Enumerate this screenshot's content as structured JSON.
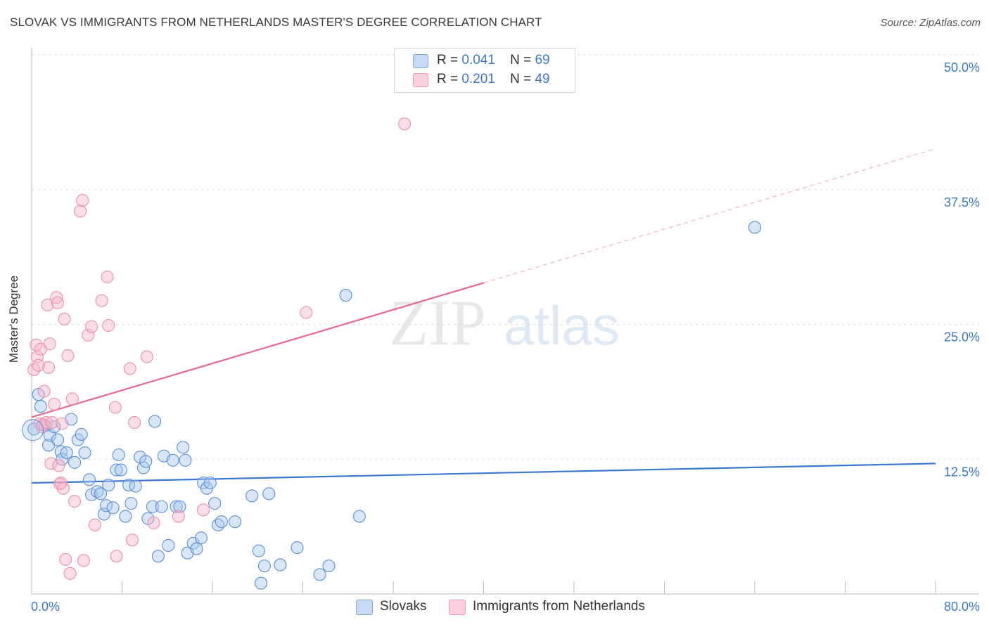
{
  "header": {
    "title": "SLOVAK VS IMMIGRANTS FROM NETHERLANDS MASTER'S DEGREE CORRELATION CHART",
    "source": "Source: ZipAtlas.com"
  },
  "legend": {
    "rows": [
      {
        "r_label": "R =",
        "r_value": "0.041",
        "n_label": "N =",
        "n_value": "69"
      },
      {
        "r_label": "R =",
        "r_value": "0.201",
        "n_label": "N =",
        "n_value": "49"
      }
    ]
  },
  "bottom_legend": {
    "items": [
      "Slovaks",
      "Immigrants from Netherlands"
    ]
  },
  "watermark": {
    "zip": "ZIP",
    "atlas": "atlas"
  },
  "colors": {
    "blue": "#3b78d0",
    "pink": "#e8688f",
    "blue_fill": "#a9c7ee",
    "pink_fill": "#f6b5c9",
    "axis_label": "#3c78c8",
    "grid": "#dddddd"
  },
  "chart_data": {
    "type": "scatter",
    "title": "SLOVAK VS IMMIGRANTS FROM NETHERLANDS MASTER'S DEGREE CORRELATION CHART",
    "xlabel": "",
    "ylabel": "Master's Degree",
    "xlim": [
      0,
      80
    ],
    "ylim": [
      0,
      50
    ],
    "x_tick_labels": [
      "0.0%",
      "80.0%"
    ],
    "y_ticks": [
      12.5,
      25.0,
      37.5,
      50.0
    ],
    "y_tick_labels": [
      "12.5%",
      "25.0%",
      "37.5%",
      "50.0%"
    ],
    "grid": true,
    "legend_position": "top-center",
    "series": [
      {
        "name": "Slovaks",
        "color": "#3b78d0",
        "r": 0.041,
        "n": 69,
        "trend": {
          "x": [
            0,
            80
          ],
          "y": [
            10.3,
            12.1
          ],
          "dashed_from": null
        },
        "points": [
          [
            0.2,
            15.3
          ],
          [
            0.6,
            18.5
          ],
          [
            0.8,
            17.4
          ],
          [
            1.2,
            15.6
          ],
          [
            1.5,
            13.8
          ],
          [
            1.6,
            14.7
          ],
          [
            2.0,
            15.5
          ],
          [
            2.3,
            14.3
          ],
          [
            2.6,
            13.2
          ],
          [
            2.7,
            12.5
          ],
          [
            3.1,
            13.1
          ],
          [
            3.5,
            16.2
          ],
          [
            3.8,
            12.2
          ],
          [
            4.1,
            14.3
          ],
          [
            4.4,
            14.8
          ],
          [
            4.7,
            13.1
          ],
          [
            5.1,
            10.6
          ],
          [
            5.3,
            9.2
          ],
          [
            5.8,
            9.5
          ],
          [
            6.1,
            9.3
          ],
          [
            6.4,
            7.4
          ],
          [
            6.6,
            8.2
          ],
          [
            6.8,
            10.1
          ],
          [
            7.2,
            8.0
          ],
          [
            7.5,
            11.5
          ],
          [
            7.7,
            12.9
          ],
          [
            7.9,
            11.5
          ],
          [
            8.3,
            7.2
          ],
          [
            8.6,
            10.1
          ],
          [
            8.8,
            8.4
          ],
          [
            9.2,
            10.0
          ],
          [
            9.6,
            12.7
          ],
          [
            9.9,
            11.7
          ],
          [
            10.1,
            12.3
          ],
          [
            10.3,
            7.0
          ],
          [
            10.7,
            8.1
          ],
          [
            10.9,
            16.0
          ],
          [
            11.2,
            3.5
          ],
          [
            11.5,
            8.1
          ],
          [
            11.7,
            12.8
          ],
          [
            12.1,
            4.5
          ],
          [
            12.5,
            12.4
          ],
          [
            12.8,
            8.1
          ],
          [
            13.1,
            8.1
          ],
          [
            13.4,
            13.6
          ],
          [
            13.6,
            12.4
          ],
          [
            13.8,
            3.8
          ],
          [
            14.3,
            4.7
          ],
          [
            14.6,
            4.2
          ],
          [
            15.0,
            5.2
          ],
          [
            15.2,
            10.3
          ],
          [
            15.5,
            9.8
          ],
          [
            15.8,
            10.3
          ],
          [
            16.2,
            8.4
          ],
          [
            16.5,
            6.4
          ],
          [
            16.8,
            6.7
          ],
          [
            18.0,
            6.7
          ],
          [
            19.5,
            9.1
          ],
          [
            20.1,
            4.0
          ],
          [
            20.6,
            2.6
          ],
          [
            21.0,
            9.3
          ],
          [
            22.0,
            2.7
          ],
          [
            23.5,
            4.3
          ],
          [
            25.5,
            1.8
          ],
          [
            26.3,
            2.6
          ],
          [
            20.3,
            1.0
          ],
          [
            27.8,
            27.7
          ],
          [
            29.0,
            7.2
          ],
          [
            64.0,
            34.0
          ]
        ]
      },
      {
        "name": "Immigrants from Netherlands",
        "color": "#e8688f",
        "r": 0.201,
        "n": 49,
        "trend": {
          "x": [
            0,
            80
          ],
          "y": [
            16.4,
            41.3
          ],
          "dashed_from": 40
        },
        "points": [
          [
            0.2,
            20.8
          ],
          [
            0.4,
            23.1
          ],
          [
            0.5,
            22.0
          ],
          [
            0.6,
            21.2
          ],
          [
            0.7,
            15.8
          ],
          [
            0.8,
            22.7
          ],
          [
            0.9,
            15.5
          ],
          [
            1.0,
            15.7
          ],
          [
            1.1,
            18.8
          ],
          [
            1.3,
            15.9
          ],
          [
            1.4,
            26.8
          ],
          [
            1.5,
            21.0
          ],
          [
            1.6,
            23.2
          ],
          [
            1.7,
            12.1
          ],
          [
            1.8,
            15.9
          ],
          [
            2.0,
            17.6
          ],
          [
            2.2,
            27.5
          ],
          [
            2.3,
            27.0
          ],
          [
            2.4,
            11.9
          ],
          [
            2.5,
            10.2
          ],
          [
            2.6,
            10.3
          ],
          [
            2.7,
            15.8
          ],
          [
            2.8,
            9.8
          ],
          [
            2.9,
            25.5
          ],
          [
            3.0,
            3.2
          ],
          [
            3.2,
            22.1
          ],
          [
            3.4,
            1.9
          ],
          [
            3.6,
            18.1
          ],
          [
            3.8,
            8.6
          ],
          [
            4.3,
            35.5
          ],
          [
            4.5,
            36.5
          ],
          [
            4.6,
            3.1
          ],
          [
            5.0,
            24.0
          ],
          [
            5.3,
            24.8
          ],
          [
            5.6,
            6.4
          ],
          [
            6.2,
            27.2
          ],
          [
            6.7,
            29.4
          ],
          [
            6.8,
            24.9
          ],
          [
            7.4,
            17.3
          ],
          [
            7.5,
            3.5
          ],
          [
            8.7,
            20.9
          ],
          [
            8.9,
            5.0
          ],
          [
            9.1,
            15.9
          ],
          [
            10.2,
            22.0
          ],
          [
            10.8,
            6.6
          ],
          [
            13.0,
            7.2
          ],
          [
            15.2,
            7.8
          ],
          [
            24.3,
            26.1
          ],
          [
            33.0,
            43.6
          ]
        ]
      }
    ]
  }
}
